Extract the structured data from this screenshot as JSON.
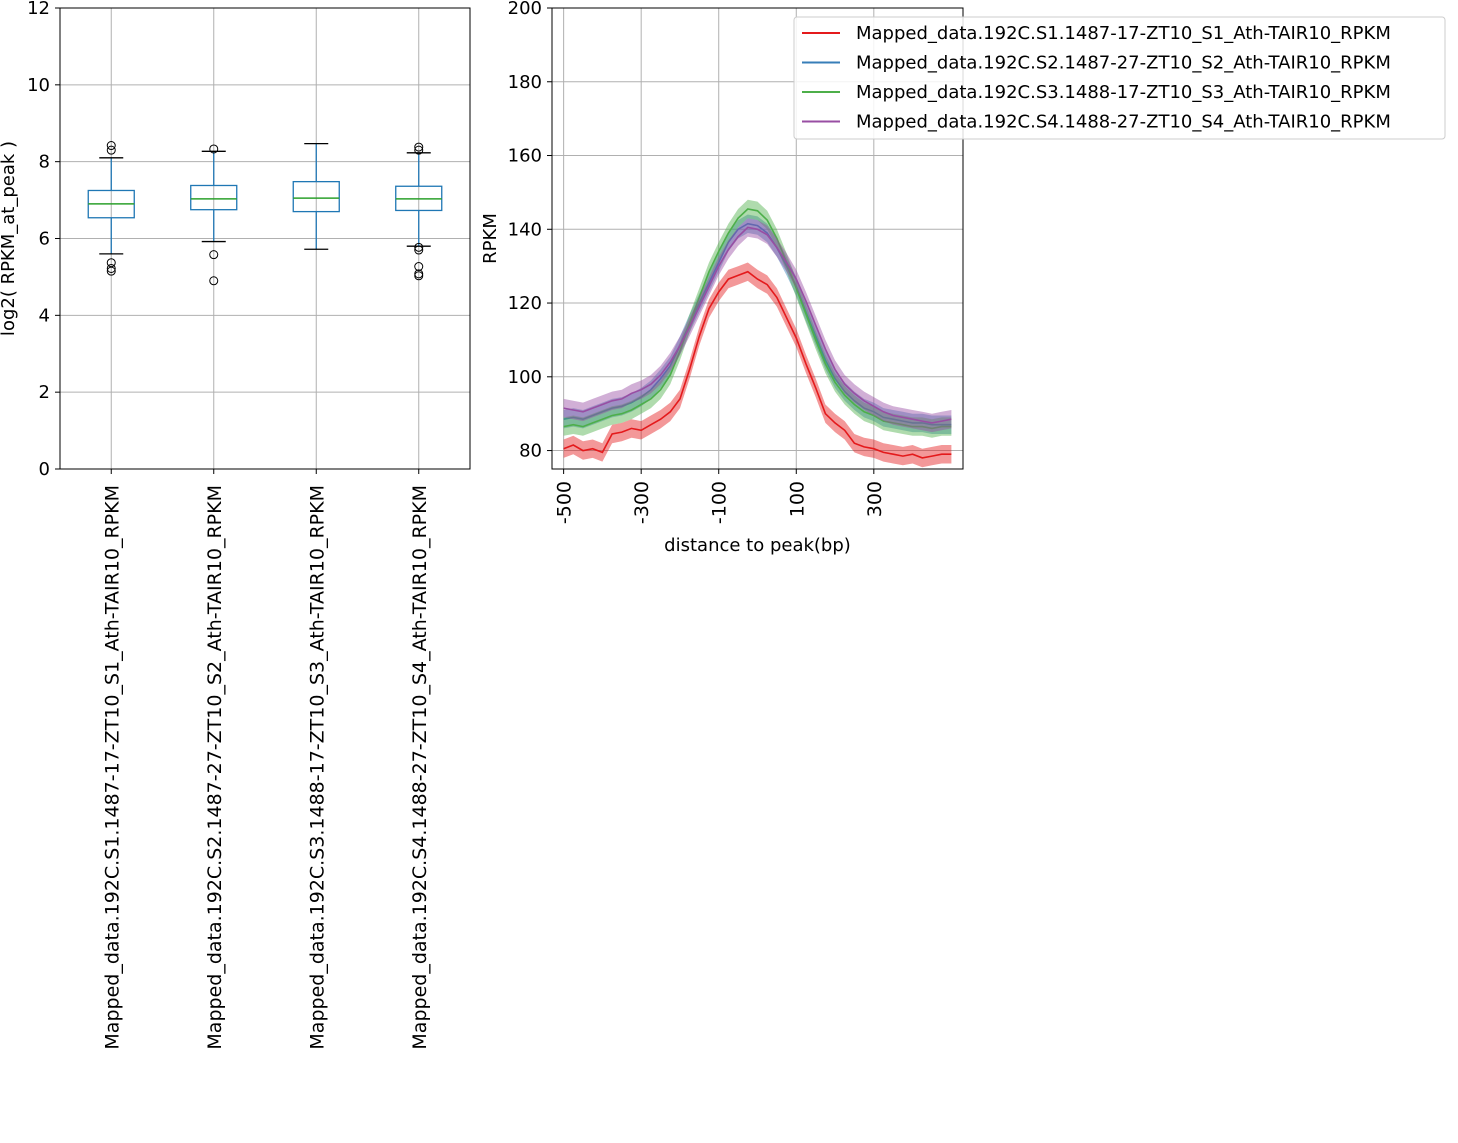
{
  "colors": {
    "grid": "#b0b0b0",
    "box": "#1f77b4",
    "median": "#2ca02c"
  },
  "chart_data": [
    {
      "type": "box",
      "title": "",
      "xlabel": "",
      "ylabel": "log2( RPKM_at_peak )",
      "ylim": [
        0,
        12
      ],
      "yticks": [
        "0",
        "2",
        "4",
        "6",
        "8",
        "10",
        "12"
      ],
      "grid": true,
      "categories": [
        "Mapped_data.192C.S1.1487-17-ZT10_S1_Ath-TAIR10_RPKM",
        "Mapped_data.192C.S2.1487-27-ZT10_S2_Ath-TAIR10_RPKM",
        "Mapped_data.192C.S3.1488-17-ZT10_S3_Ath-TAIR10_RPKM",
        "Mapped_data.192C.S4.1488-27-ZT10_S4_Ath-TAIR10_RPKM"
      ],
      "boxes": [
        {
          "whisker_low": 5.6,
          "q1": 6.54,
          "median": 6.9,
          "q3": 7.25,
          "whisker_high": 8.1,
          "outliers": [
            5.15,
            5.22,
            5.37,
            8.3,
            8.42
          ]
        },
        {
          "whisker_low": 5.92,
          "q1": 6.75,
          "median": 7.03,
          "q3": 7.38,
          "whisker_high": 8.27,
          "outliers": [
            4.9,
            5.58,
            8.33
          ]
        },
        {
          "whisker_low": 5.72,
          "q1": 6.7,
          "median": 7.05,
          "q3": 7.48,
          "whisker_high": 8.47,
          "outliers": []
        },
        {
          "whisker_low": 5.8,
          "q1": 6.73,
          "median": 7.03,
          "q3": 7.36,
          "whisker_high": 8.23,
          "outliers": [
            5.03,
            5.08,
            5.27,
            5.7,
            5.77,
            8.3,
            8.38
          ]
        }
      ]
    },
    {
      "type": "line",
      "title": "",
      "xlabel": "distance to peak(bp)",
      "ylabel": "RPKM",
      "xlim": [
        -530,
        530
      ],
      "ylim": [
        75,
        200
      ],
      "xticks": [
        "-500",
        "-300",
        "-100",
        "100",
        "300"
      ],
      "yticks": [
        "80",
        "100",
        "120",
        "140",
        "160",
        "180",
        "200"
      ],
      "grid": true,
      "legend_position": "top-right",
      "x": [
        -500,
        -475,
        -450,
        -425,
        -400,
        -375,
        -350,
        -325,
        -300,
        -275,
        -250,
        -225,
        -200,
        -175,
        -150,
        -125,
        -100,
        -75,
        -50,
        -25,
        0,
        25,
        50,
        75,
        100,
        125,
        150,
        175,
        200,
        225,
        250,
        275,
        300,
        325,
        350,
        375,
        400,
        425,
        450,
        475,
        500
      ],
      "series": [
        {
          "name": "Mapped_data.192C.S1.1487-17-ZT10_S1_Ath-TAIR10_RPKM",
          "color": "#e41a1c",
          "band": 2.5,
          "values": [
            80.5,
            81.5,
            80.0,
            80.5,
            79.5,
            84.5,
            85.0,
            86.0,
            85.5,
            87.0,
            88.5,
            90.5,
            94.0,
            102.0,
            111.0,
            118.5,
            123.0,
            126.5,
            127.5,
            128.5,
            126.5,
            125.0,
            121.5,
            116.0,
            110.5,
            103.5,
            97.0,
            90.0,
            87.5,
            85.5,
            82.0,
            81.0,
            80.5,
            79.5,
            79.0,
            78.5,
            79.0,
            78.0,
            78.5,
            79.0,
            79.0
          ]
        },
        {
          "name": "Mapped_data.192C.S2.1487-27-ZT10_S2_Ath-TAIR10_RPKM",
          "color": "#377eb8",
          "band": 2.5,
          "values": [
            88.5,
            89.0,
            88.5,
            89.5,
            90.5,
            91.5,
            92.0,
            93.0,
            94.5,
            96.5,
            99.5,
            103.0,
            108.5,
            114.5,
            120.0,
            125.5,
            131.0,
            136.5,
            140.0,
            141.5,
            141.0,
            139.0,
            135.0,
            130.0,
            124.5,
            117.5,
            111.0,
            104.5,
            99.5,
            96.0,
            93.5,
            91.5,
            90.5,
            89.0,
            88.5,
            88.0,
            87.5,
            87.5,
            87.0,
            87.0,
            87.0
          ]
        },
        {
          "name": "Mapped_data.192C.S3.1488-17-ZT10_S3_Ath-TAIR10_RPKM",
          "color": "#4daf4a",
          "band": 2.5,
          "values": [
            86.5,
            87.0,
            86.5,
            87.5,
            88.5,
            89.5,
            90.0,
            91.0,
            92.5,
            94.0,
            96.5,
            100.5,
            107.0,
            114.5,
            121.5,
            128.5,
            134.0,
            139.0,
            143.0,
            145.5,
            145.0,
            142.5,
            137.5,
            131.0,
            124.0,
            117.0,
            110.0,
            103.5,
            98.5,
            95.0,
            92.5,
            90.5,
            89.5,
            88.0,
            87.5,
            87.0,
            86.5,
            86.5,
            86.0,
            86.5,
            86.5
          ]
        },
        {
          "name": "Mapped_data.192C.S4.1488-27-ZT10_S4_Ath-TAIR10_RPKM",
          "color": "#984ea3",
          "band": 2.5,
          "values": [
            91.5,
            91.0,
            90.5,
            91.5,
            92.5,
            93.5,
            94.0,
            95.5,
            96.5,
            98.0,
            100.5,
            104.0,
            108.5,
            113.5,
            119.0,
            124.5,
            130.0,
            134.5,
            138.0,
            140.5,
            140.0,
            138.5,
            135.0,
            131.0,
            126.5,
            120.5,
            114.0,
            107.5,
            102.0,
            98.0,
            95.5,
            93.5,
            92.0,
            90.5,
            89.5,
            89.0,
            88.5,
            88.0,
            87.5,
            88.0,
            88.5
          ]
        }
      ]
    }
  ]
}
